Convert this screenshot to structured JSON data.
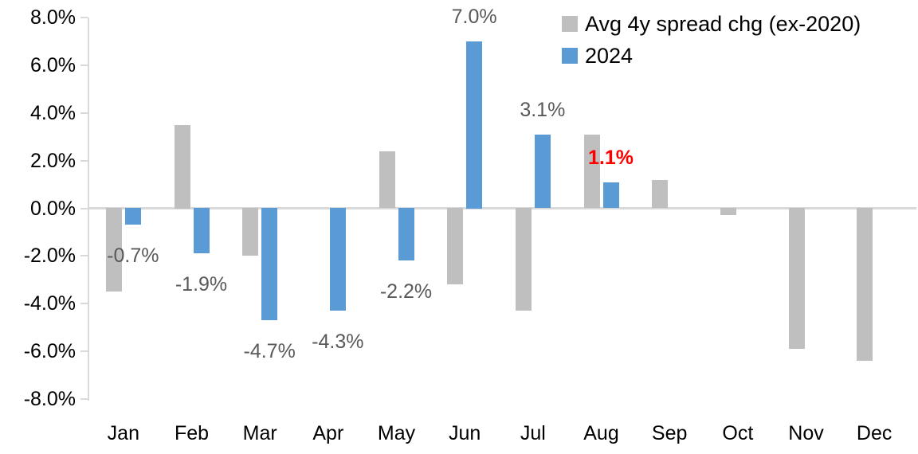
{
  "chart_data": {
    "type": "bar",
    "title": "",
    "xlabel": "",
    "ylabel": "",
    "categories": [
      "Jan",
      "Feb",
      "Mar",
      "Apr",
      "May",
      "Jun",
      "Jul",
      "Aug",
      "Sep",
      "Oct",
      "Nov",
      "Dec"
    ],
    "series": [
      {
        "name": "Avg 4y spread chg (ex-2020)",
        "color": "#BFBFBF",
        "values": [
          -3.5,
          3.5,
          -2.0,
          0.0,
          2.4,
          -3.2,
          -4.3,
          3.1,
          1.2,
          -0.3,
          -5.9,
          -6.4
        ]
      },
      {
        "name": "2024",
        "color": "#5B9BD5",
        "values": [
          -0.7,
          -1.9,
          -4.7,
          -4.3,
          -2.2,
          7.0,
          3.1,
          1.1,
          null,
          null,
          null,
          null
        ]
      }
    ],
    "data_labels": [
      {
        "month_index": 0,
        "text": "-0.7%",
        "color": "#595959",
        "bold": false
      },
      {
        "month_index": 1,
        "text": "-1.9%",
        "color": "#595959",
        "bold": false
      },
      {
        "month_index": 2,
        "text": "-4.7%",
        "color": "#595959",
        "bold": false
      },
      {
        "month_index": 3,
        "text": "-4.3%",
        "color": "#595959",
        "bold": false
      },
      {
        "month_index": 4,
        "text": "-2.2%",
        "color": "#595959",
        "bold": false
      },
      {
        "month_index": 5,
        "text": "7.0%",
        "color": "#595959",
        "bold": false
      },
      {
        "month_index": 6,
        "text": "3.1%",
        "color": "#595959",
        "bold": false
      },
      {
        "month_index": 7,
        "text": "1.1%",
        "color": "#FF0000",
        "bold": true
      }
    ],
    "y_axis": {
      "min": -8,
      "max": 8,
      "tick_step": 2,
      "tick_labels": [
        "8.0%",
        "6.0%",
        "4.0%",
        "2.0%",
        "0.0%",
        "-2.0%",
        "-4.0%",
        "-6.0%",
        "-8.0%"
      ]
    },
    "legend": {
      "position": "top-right",
      "entries": [
        {
          "label": "Avg 4y spread chg (ex-2020)",
          "color": "#BFBFBF"
        },
        {
          "label": "2024",
          "color": "#5B9BD5"
        }
      ]
    },
    "grid": false,
    "axis_color": "#D9D9D9",
    "background": "#FFFFFF",
    "text_color": "#000000"
  }
}
